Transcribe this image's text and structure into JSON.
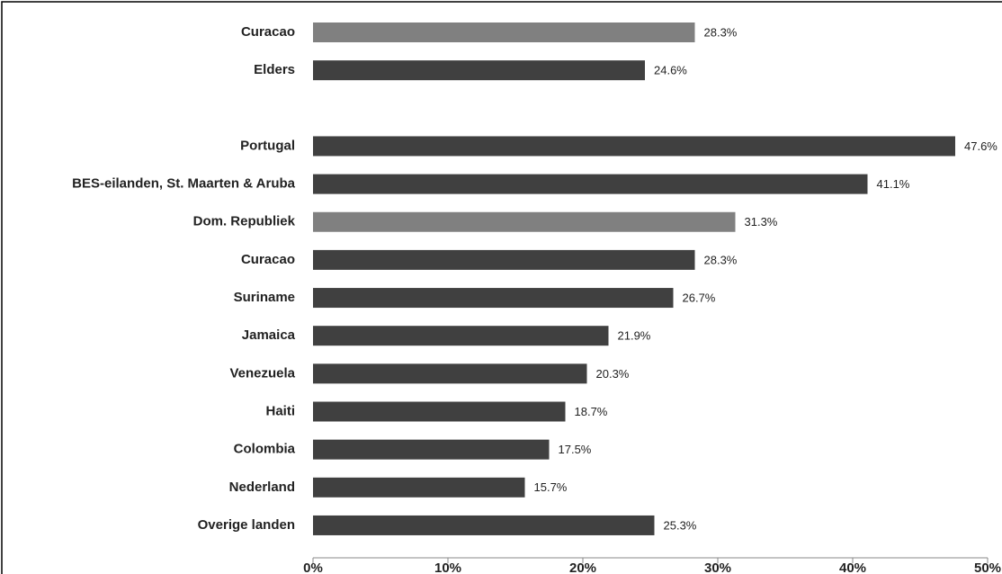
{
  "chart_data": {
    "type": "bar",
    "orientation": "horizontal",
    "categories": [
      "Curacao",
      "Elders",
      null,
      "Portugal",
      "BES-eilanden, St. Maarten & Aruba",
      "Dom. Republiek",
      "Curacao",
      "Suriname",
      "Jamaica",
      "Venezuela",
      "Haiti",
      "Colombia",
      "Nederland",
      "Overige landen"
    ],
    "values": [
      28.3,
      24.6,
      null,
      47.6,
      41.1,
      31.3,
      28.3,
      26.7,
      21.9,
      20.3,
      18.7,
      17.5,
      15.7,
      25.3
    ],
    "value_labels": [
      "28.3%",
      "24.6%",
      null,
      "47.6%",
      "41.1%",
      "31.3%",
      "28.3%",
      "26.7%",
      "21.9%",
      "20.3%",
      "18.7%",
      "17.5%",
      "15.7%",
      "25.3%"
    ],
    "colors": [
      "#808080",
      "#404040",
      null,
      "#404040",
      "#404040",
      "#808080",
      "#404040",
      "#404040",
      "#404040",
      "#404040",
      "#404040",
      "#404040",
      "#404040",
      "#404040"
    ],
    "xlim": [
      0,
      50
    ],
    "xticks": [
      {
        "value": 0,
        "label": "0%"
      },
      {
        "value": 10,
        "label": "10%"
      },
      {
        "value": 20,
        "label": "20%"
      },
      {
        "value": 30,
        "label": "30%"
      },
      {
        "value": 40,
        "label": "40%"
      },
      {
        "value": 50,
        "label": "50%"
      }
    ],
    "grid": false
  }
}
